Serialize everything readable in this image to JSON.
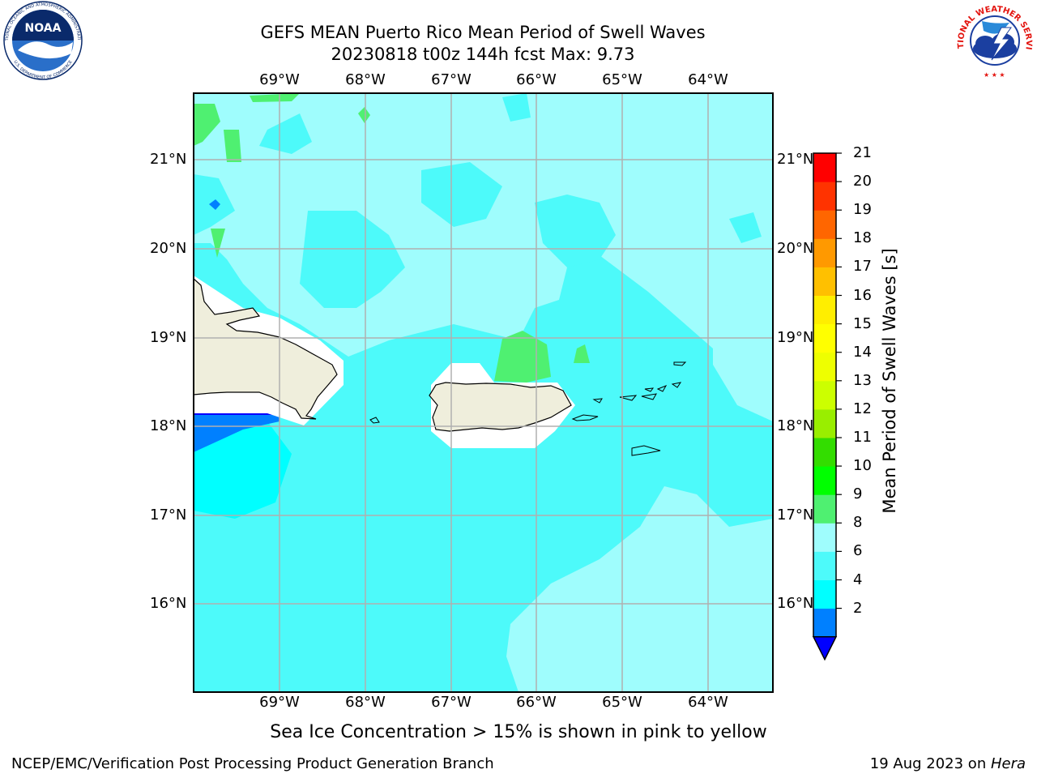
{
  "title": {
    "line1": "GEFS MEAN Puerto Rico Mean Period of Swell Waves",
    "line2": "20230818 t00z 144h fcst   Max: 9.73"
  },
  "map": {
    "lon_labels": [
      "69°W",
      "68°W",
      "67°W",
      "66°W",
      "65°W",
      "64°W"
    ],
    "lat_labels": [
      "21°N",
      "20°N",
      "19°N",
      "18°N",
      "17°N",
      "16°N"
    ],
    "colors": {
      "ocean_light": "#9ffdfd",
      "ocean_mid": "#4dfafa",
      "ocean_deep": "#00ffff",
      "green": "#4ff071",
      "blue": "#0080ff",
      "dark_blue": "#0000ff",
      "land": "#efeedc",
      "grid": "#b0b0b0"
    }
  },
  "colorbar": {
    "label": "Mean Period of Swell Waves [s]",
    "ticks": [
      "21",
      "20",
      "19",
      "18",
      "17",
      "16",
      "15",
      "14",
      "13",
      "12",
      "11",
      "10",
      "9",
      "8",
      "6",
      "4",
      "2"
    ],
    "colors_bottom_to_top": [
      "#0080ff",
      "#00ffff",
      "#4dfafa",
      "#9ffdfd",
      "#4ff071",
      "#00ff00",
      "#33dd00",
      "#99ee00",
      "#ccff00",
      "#eeff00",
      "#ffff00",
      "#ffee00",
      "#ffc000",
      "#ff9900",
      "#ff6600",
      "#ff3300",
      "#ff0000"
    ],
    "extend_color": "#0000ff"
  },
  "note": "Sea Ice Concentration > 15% is shown in pink to yellow",
  "footer": {
    "left": "NCEP/EMC/Verification Post Processing Product Generation Branch",
    "right_date": "19 Aug 2023 on ",
    "right_host": "Hera"
  },
  "logos": {
    "noaa_text": "NOAA",
    "noaa_ring_top": "NATIONAL OCEANIC AND ATMOSPHERIC ADMINISTRATION",
    "noaa_ring_bottom": "U.S. DEPARTMENT OF COMMERCE",
    "nws_ring": "NATIONAL WEATHER SERVICE"
  }
}
